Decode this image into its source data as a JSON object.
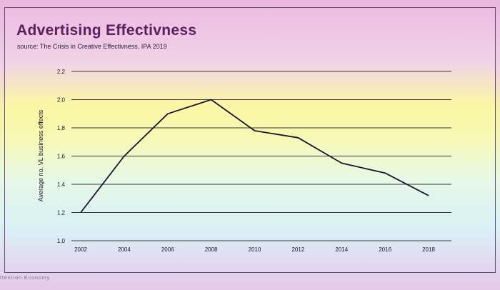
{
  "chart_data": {
    "type": "line",
    "title": "Advertising Effectivness",
    "subtitle": "source: The Crisis in Creative Effectivness, IPA 2019",
    "xlabel": "",
    "ylabel": "Average no. VL business effects",
    "x": [
      "2002",
      "2004",
      "2006",
      "2008",
      "2010",
      "2012",
      "2014",
      "2016",
      "2018"
    ],
    "yticks": [
      "1,0",
      "1,2",
      "1,4",
      "1,6",
      "1,8",
      "2,0",
      "2,2"
    ],
    "ylim": [
      1.0,
      2.2
    ],
    "grid": true,
    "series": [
      {
        "values": [
          1.2,
          1.6,
          1.9,
          2.0,
          1.78,
          1.73,
          1.55,
          1.48,
          1.32
        ]
      }
    ],
    "line_color": "#1a1530",
    "grid_color": "#3a3a3a"
  },
  "footer": "ttention Economy"
}
